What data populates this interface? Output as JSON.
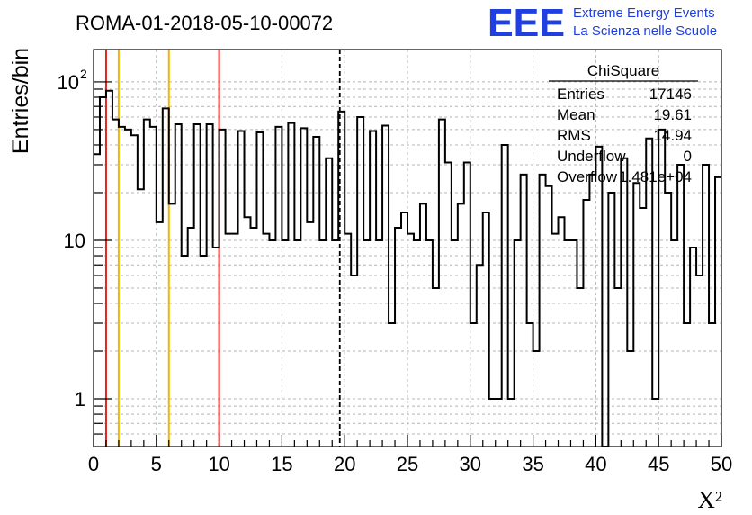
{
  "header": {
    "run_title": "ROMA-01-2018-05-10-00072",
    "logo_letters": "EEE",
    "logo_line1": "Extreme Energy Events",
    "logo_line2": "La Scienza nelle Scuole"
  },
  "stats_box": {
    "title": "ChiSquare",
    "rows": [
      {
        "label": "Entries",
        "value": "17146"
      },
      {
        "label": "Mean",
        "value": "19.61"
      },
      {
        "label": "RMS",
        "value": "14.94"
      },
      {
        "label": "Underflow",
        "value": "0"
      },
      {
        "label": "Overflow",
        "value": "1.481e+04"
      }
    ]
  },
  "colors": {
    "histogram": "#000000",
    "red_line": "#e8221e",
    "yellow_line": "#f2b705",
    "grid": "#b4b4b4",
    "logo_blue": "#1f3fe0"
  },
  "chart_data": {
    "type": "histogram",
    "xlabel": "X²",
    "ylabel": "Entries/bin",
    "xlim": [
      0,
      50
    ],
    "ylim": [
      0.5,
      160
    ],
    "yscale": "log",
    "grid": true,
    "x_ticks": [
      "0",
      "5",
      "10",
      "15",
      "20",
      "25",
      "30",
      "35",
      "40",
      "45",
      "50"
    ],
    "y_ticks": [
      {
        "value": 1,
        "label": "1"
      },
      {
        "value": 10,
        "label": "10"
      },
      {
        "value": 100,
        "label": "10",
        "exponent": "2"
      }
    ],
    "bin_width": 0.5,
    "bin_start": 0,
    "values": [
      35,
      80,
      88,
      58,
      52,
      50,
      46,
      21,
      58,
      52,
      13,
      68,
      17,
      54,
      8,
      12,
      54,
      8,
      54,
      9,
      50,
      11,
      11,
      49,
      14,
      12,
      48,
      11,
      10,
      52,
      10,
      55,
      10,
      51,
      13,
      45,
      10,
      33,
      10,
      65,
      11,
      6,
      60,
      10,
      49,
      10,
      53,
      3,
      12,
      15,
      11,
      10,
      17,
      10,
      5,
      58,
      31,
      10,
      17,
      31,
      3,
      7,
      15,
      1,
      1,
      40,
      1,
      10,
      26,
      3,
      2,
      26,
      22,
      11,
      14,
      10,
      10,
      5,
      18,
      26,
      39,
      0,
      20,
      5,
      33,
      2,
      23,
      16,
      44,
      1,
      50,
      20,
      10,
      30,
      3,
      9,
      6,
      30,
      3,
      25
    ],
    "vertical_lines": [
      {
        "x": 1,
        "color": "red"
      },
      {
        "x": 2,
        "color": "yellow"
      },
      {
        "x": 6,
        "color": "yellow"
      },
      {
        "x": 10,
        "color": "red"
      },
      {
        "x": 19.61,
        "color": "black",
        "style": "dashed"
      }
    ]
  }
}
